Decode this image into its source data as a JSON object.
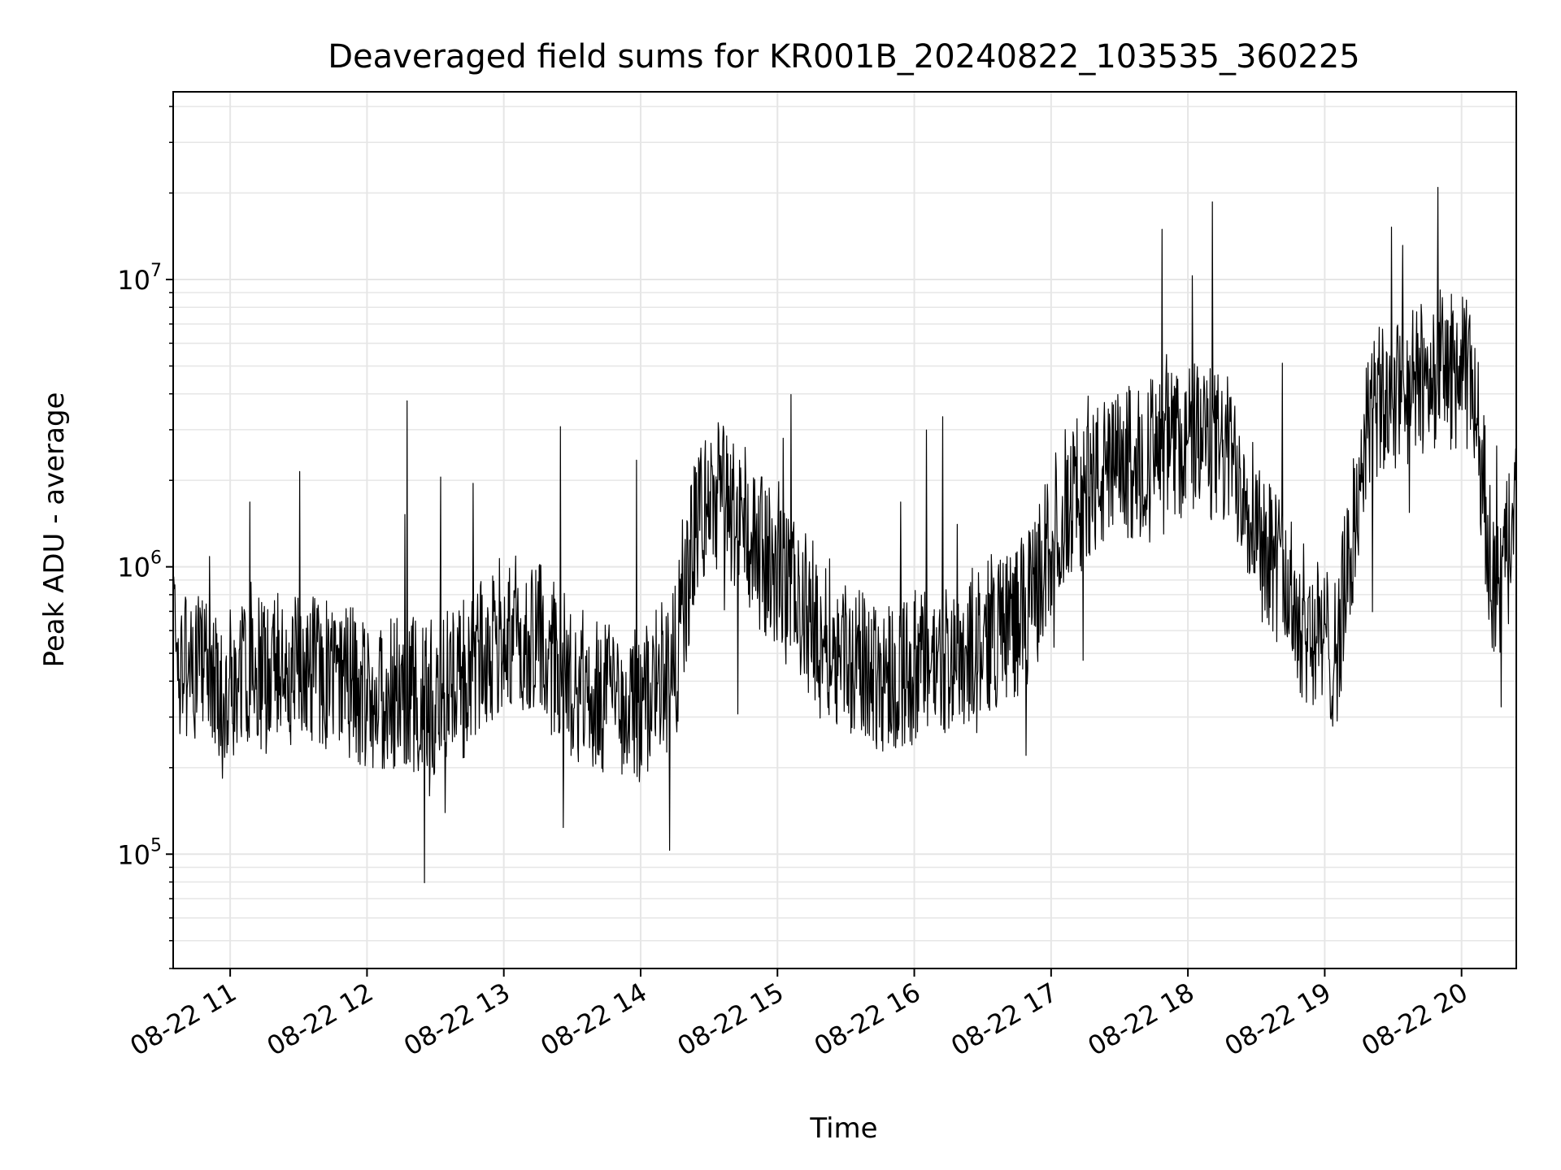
{
  "chart_data": {
    "type": "line",
    "title": "Deaveraged field sums for KR001B_20240822_103535_360225",
    "xlabel": "Time",
    "ylabel": "Peak ADU - average",
    "yscale": "log",
    "ylim": [
      40000,
      45000000
    ],
    "xlim": [
      "2024-08-22 10:35",
      "2024-08-22 20:24"
    ],
    "grid": true,
    "line_color": "#000000",
    "grid_color": "#e6e6e6",
    "x_ticks": [
      "2024-08-22 11:00",
      "2024-08-22 12:00",
      "2024-08-22 13:00",
      "2024-08-22 14:00",
      "2024-08-22 15:00",
      "2024-08-22 16:00",
      "2024-08-22 17:00",
      "2024-08-22 18:00",
      "2024-08-22 19:00",
      "2024-08-22 20:00"
    ],
    "x_tick_labels": [
      "08-22 11",
      "08-22 12",
      "08-22 13",
      "08-22 14",
      "08-22 15",
      "08-22 16",
      "08-22 17",
      "08-22 18",
      "08-22 19",
      "08-22 20"
    ],
    "y_ticks": [
      {
        "value": 100000,
        "base": "10",
        "exp": "5"
      },
      {
        "value": 1000000,
        "base": "10",
        "exp": "6"
      },
      {
        "value": 10000000,
        "base": "10",
        "exp": "7"
      }
    ],
    "series": [
      {
        "x": [
          "2024-08-22 10:35",
          "2024-08-22 10:45",
          "2024-08-22 10:50",
          "2024-08-22 11:00",
          "2024-08-22 11:15",
          "2024-08-22 11:30",
          "2024-08-22 11:45",
          "2024-08-22 12:00",
          "2024-08-22 12:15",
          "2024-08-22 12:30",
          "2024-08-22 12:45",
          "2024-08-22 13:00",
          "2024-08-22 13:15",
          "2024-08-22 13:30",
          "2024-08-22 13:45",
          "2024-08-22 14:00",
          "2024-08-22 14:15",
          "2024-08-22 14:25",
          "2024-08-22 14:35",
          "2024-08-22 14:50",
          "2024-08-22 15:05",
          "2024-08-22 15:20",
          "2024-08-22 15:35",
          "2024-08-22 15:50",
          "2024-08-22 16:05",
          "2024-08-22 16:20",
          "2024-08-22 16:35",
          "2024-08-22 16:50",
          "2024-08-22 17:05",
          "2024-08-22 17:20",
          "2024-08-22 17:35",
          "2024-08-22 17:50",
          "2024-08-22 18:05",
          "2024-08-22 18:20",
          "2024-08-22 18:35",
          "2024-08-22 18:50",
          "2024-08-22 19:05",
          "2024-08-22 19:20",
          "2024-08-22 19:35",
          "2024-08-22 19:50",
          "2024-08-22 20:05",
          "2024-08-22 20:15",
          "2024-08-22 20:24"
        ],
        "y": [
          500000,
          450000,
          420000,
          400000,
          420000,
          450000,
          400000,
          380000,
          360000,
          350000,
          420000,
          600000,
          550000,
          400000,
          350000,
          330000,
          450000,
          1500000,
          1800000,
          1200000,
          800000,
          600000,
          450000,
          420000,
          450000,
          500000,
          600000,
          700000,
          1600000,
          2000000,
          2300000,
          2600000,
          2800000,
          2400000,
          1200000,
          650000,
          500000,
          3500000,
          4000000,
          5000000,
          4500000,
          700000,
          1500000
        ]
      }
    ]
  }
}
